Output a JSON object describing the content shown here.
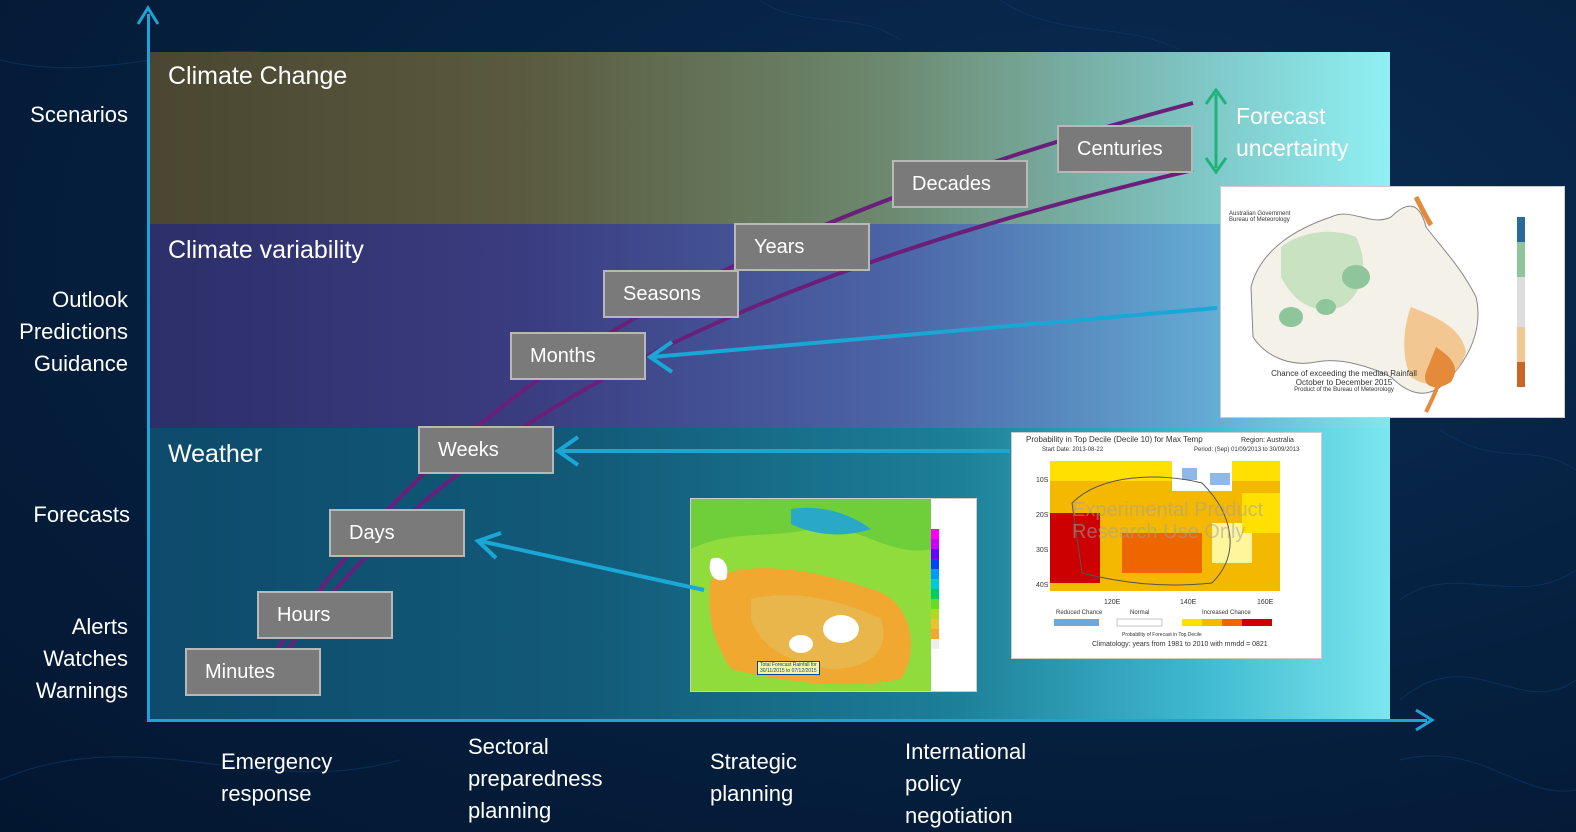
{
  "bands": {
    "climate_change": "Climate Change",
    "climate_variability": "Climate  variability",
    "weather": "Weather"
  },
  "y_labels": {
    "scenarios": "Scenarios",
    "outlook": [
      "Outlook",
      "Predictions",
      "Guidance"
    ],
    "forecasts": "Forecasts",
    "alerts": [
      "Alerts",
      "Watches",
      "Warnings"
    ]
  },
  "x_labels": {
    "emergency": [
      "Emergency",
      "response"
    ],
    "sectoral": [
      "Sectoral",
      "preparedness",
      "planning"
    ],
    "strategic": [
      "Strategic",
      "planning"
    ],
    "international": [
      "International",
      "policy",
      "negotiation"
    ]
  },
  "timescales": [
    "Minutes",
    "Hours",
    "Days",
    "Weeks",
    "Months",
    "Seasons",
    "Years",
    "Decades",
    "Centuries"
  ],
  "forecast_uncertainty": [
    "Forecast",
    "uncertainty"
  ],
  "maps": {
    "rainfall_outlook": {
      "header": [
        "Australian Government",
        "Bureau of Meteorology"
      ],
      "caption": [
        "Chance of exceeding the median Rainfall",
        "October to December 2015"
      ],
      "subcaption": "Product of the Bureau of Meteorology"
    },
    "decile": {
      "title": "Probability in Top Decile (Decile 10) for Max Temp",
      "region": "Region: Australia",
      "start": "Start Date: 2013-08-22",
      "period": "Period: (Sep) 01/09/2013 to 30/09/2013",
      "watermark": [
        "Experimental Product",
        "Research Use Only"
      ],
      "legend": [
        "Reduced Chance",
        "Normal",
        "Increased Chance"
      ],
      "legend_title": "Probability of Forecast in Top Decile",
      "climatology": "Climatology: years from 1981 to 2010 with mmdd = 0821",
      "lat_labels": [
        "10S",
        "20S",
        "30S",
        "40S"
      ],
      "lon_labels": [
        "120E",
        "140E",
        "160E"
      ]
    },
    "rainfall_forecast": {
      "caption": [
        "Total Forecast Rainfall for",
        "30/11/2015 to 07/12/2015"
      ]
    }
  },
  "colors": {
    "axis": "#1ea3d8",
    "curve": "#6a1f7a",
    "arrow": "#1aa7d6",
    "uncertainty": "#1fb37a"
  }
}
